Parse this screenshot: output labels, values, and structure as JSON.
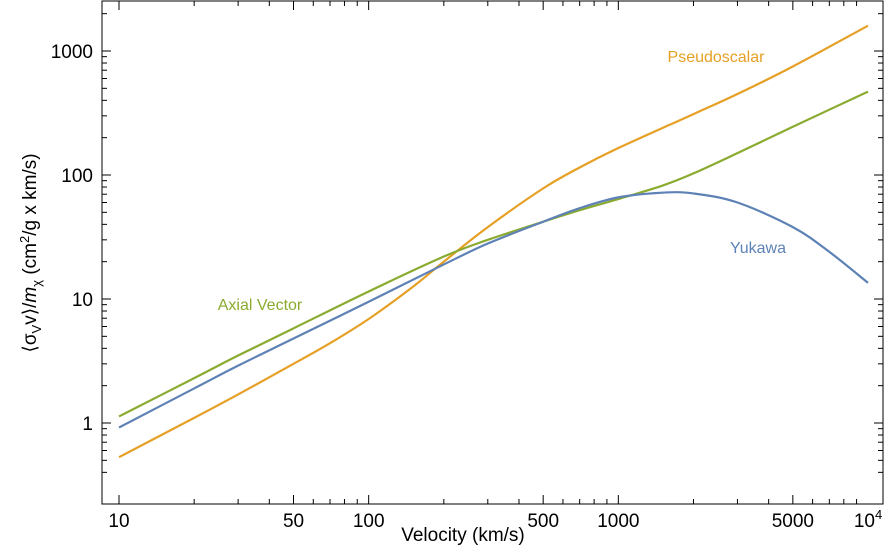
{
  "chart_data": {
    "type": "line",
    "title": "",
    "xlabel": "Velocity (km/s)",
    "ylabel": {
      "prefix": "⟨σ",
      "sub1": "V",
      "mid": "v⟩/",
      "m": "m",
      "sub2": "χ",
      "unit_a": " (cm",
      "sup": "2",
      "unit_b": "/g x km/s)"
    },
    "x_scale": "log",
    "y_scale": "log",
    "xlim": [
      10,
      10000
    ],
    "ylim": [
      0.4,
      2000
    ],
    "x_ticks": [
      {
        "value": 10,
        "label": "10"
      },
      {
        "value": 50,
        "label": "50"
      },
      {
        "value": 100,
        "label": "100"
      },
      {
        "value": 500,
        "label": "500"
      },
      {
        "value": 1000,
        "label": "1000"
      },
      {
        "value": 5000,
        "label": "5000"
      },
      {
        "value": 10000,
        "label": "10",
        "sup": "4"
      }
    ],
    "y_ticks": [
      {
        "value": 1,
        "label": "1"
      },
      {
        "value": 10,
        "label": "10"
      },
      {
        "value": 100,
        "label": "100"
      },
      {
        "value": 1000,
        "label": "1000"
      }
    ],
    "grid": false,
    "series": [
      {
        "name": "Pseudoscalar",
        "color": "#e5a025",
        "x": [
          10,
          20,
          30,
          50,
          70,
          100,
          150,
          200,
          300,
          500,
          700,
          1000,
          2000,
          3000,
          5000,
          10000
        ],
        "y": [
          0.53,
          1.1,
          1.7,
          3.0,
          4.4,
          6.9,
          12.5,
          20,
          38,
          78,
          115,
          165,
          310,
          450,
          750,
          1600
        ]
      },
      {
        "name": "Axial Vector",
        "color": "#8aab2f",
        "x": [
          10,
          20,
          30,
          50,
          100,
          200,
          300,
          500,
          700,
          1000,
          1500,
          2000,
          3000,
          5000,
          10000
        ],
        "y": [
          1.13,
          2.3,
          3.5,
          5.8,
          11.5,
          22,
          30,
          42,
          52,
          64,
          82,
          103,
          150,
          245,
          470
        ]
      },
      {
        "name": "Yukawa",
        "color": "#5e82b5",
        "x": [
          10,
          20,
          30,
          50,
          100,
          200,
          300,
          500,
          700,
          1000,
          1500,
          2000,
          3000,
          5000,
          7000,
          10000
        ],
        "y": [
          0.92,
          1.9,
          2.9,
          4.8,
          9.5,
          19,
          28,
          42,
          54,
          66,
          72,
          71,
          60,
          38,
          24,
          13.5
        ]
      }
    ]
  }
}
